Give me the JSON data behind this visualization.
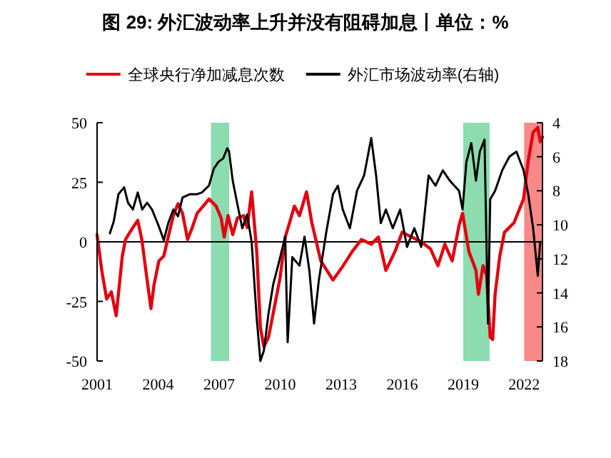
{
  "chart_data": {
    "type": "line",
    "title": "图 29: 外汇波动率上升并没有阻碍加息丨单位：%",
    "xlim": [
      2001,
      2022.9
    ],
    "xticks": [
      2001,
      2004,
      2007,
      2010,
      2013,
      2016,
      2019,
      2022
    ],
    "ylim": [
      -50,
      50
    ],
    "yticks": [
      -50,
      -25,
      0,
      25,
      50
    ],
    "y2lim": [
      18,
      4
    ],
    "y2ticks": [
      4,
      6,
      8,
      10,
      12,
      14,
      16,
      18
    ],
    "legend": "top",
    "grid": false,
    "ref_lines": [
      {
        "axis": "y",
        "value": 0,
        "color": "#000000"
      }
    ],
    "bands": [
      {
        "axis": "x",
        "from": 2006.6,
        "to": 2007.5,
        "color": "#6fd39c"
      },
      {
        "axis": "x",
        "from": 2019.0,
        "to": 2020.3,
        "color": "#6fd39c"
      },
      {
        "axis": "x",
        "from": 2022.0,
        "to": 2022.9,
        "color": "#f76b6b"
      }
    ],
    "series": [
      {
        "name": "全球央行净加减息次数",
        "color": "#e3000f",
        "x": [
          2001.0,
          2001.23,
          2001.47,
          2001.7,
          2001.94,
          2002.24,
          2002.4,
          2002.76,
          2003.0,
          2003.2,
          2003.46,
          2003.65,
          2003.8,
          2004.04,
          2004.28,
          2004.44,
          2004.75,
          2004.98,
          2005.2,
          2005.45,
          2005.68,
          2005.92,
          2006.22,
          2006.5,
          2006.85,
          2007.1,
          2007.25,
          2007.44,
          2007.67,
          2007.9,
          2008.2,
          2008.38,
          2008.6,
          2008.85,
          2009.03,
          2009.2,
          2009.43,
          2009.66,
          2010.0,
          2010.25,
          2010.5,
          2010.7,
          2010.95,
          2011.3,
          2011.56,
          2012.0,
          2012.6,
          2013.1,
          2013.55,
          2014.0,
          2014.48,
          2014.83,
          2015.2,
          2015.65,
          2016.0,
          2016.47,
          2016.94,
          2017.4,
          2017.76,
          2018.1,
          2018.46,
          2018.8,
          2018.97,
          2019.28,
          2019.63,
          2019.75,
          2019.98,
          2020.15,
          2020.33,
          2020.45,
          2020.57,
          2020.8,
          2021.03,
          2021.5,
          2021.97,
          2022.2,
          2022.44,
          2022.67,
          2022.79,
          2022.9
        ],
        "values": [
          3,
          -12,
          -24,
          -21,
          -31,
          -6,
          1,
          6,
          9,
          1,
          -16,
          -28,
          -18,
          -8,
          -6,
          0,
          11,
          16,
          12,
          1,
          6,
          12,
          15,
          18,
          15,
          10,
          2,
          11,
          3,
          10,
          11,
          6,
          21,
          -4,
          -36,
          -44,
          -40,
          -30,
          -15,
          2,
          9,
          15,
          11,
          21,
          8,
          -8,
          -16,
          -10,
          -4,
          1,
          -1,
          2,
          -12,
          -4,
          4,
          2,
          0,
          -3,
          -10,
          -1,
          -8,
          7,
          12,
          -4,
          -12,
          -22,
          -10,
          -14,
          -40,
          -41,
          -22,
          -6,
          4,
          8,
          18,
          34,
          46,
          48,
          42,
          44
        ]
      },
      {
        "name": "外汇市场波动率(右轴)",
        "color": "#000000",
        "axis": "y2",
        "x": [
          2001.63,
          2001.82,
          2002.05,
          2002.33,
          2002.52,
          2002.76,
          2003.0,
          2003.22,
          2003.46,
          2003.7,
          2004.04,
          2004.28,
          2004.5,
          2004.75,
          2004.98,
          2005.2,
          2005.57,
          2005.92,
          2006.15,
          2006.5,
          2006.74,
          2006.97,
          2007.2,
          2007.4,
          2007.49,
          2007.67,
          2007.9,
          2008.14,
          2008.38,
          2008.6,
          2008.85,
          2009.03,
          2009.2,
          2009.43,
          2009.66,
          2009.9,
          2010.25,
          2010.37,
          2010.6,
          2010.95,
          2011.2,
          2011.44,
          2011.67,
          2011.9,
          2012.26,
          2012.6,
          2012.84,
          2013.08,
          2013.43,
          2013.78,
          2014.13,
          2014.48,
          2014.72,
          2014.95,
          2015.2,
          2015.54,
          2015.9,
          2016.24,
          2016.6,
          2016.94,
          2017.3,
          2017.64,
          2018.0,
          2018.34,
          2018.8,
          2018.97,
          2019.16,
          2019.4,
          2019.63,
          2019.82,
          2020.05,
          2020.22,
          2020.33,
          2020.57,
          2020.92,
          2021.27,
          2021.62,
          2021.97,
          2022.2,
          2022.44,
          2022.67,
          2022.79
        ],
        "values": [
          10.5,
          9.8,
          8.2,
          7.8,
          8.7,
          9.1,
          8.1,
          9.1,
          8.7,
          9.1,
          10.1,
          10.9,
          9.9,
          9.1,
          9.5,
          8.4,
          8.2,
          8.2,
          8.1,
          7.7,
          6.7,
          6.3,
          6.1,
          5.5,
          5.7,
          7.4,
          8.8,
          10.2,
          9.4,
          11.0,
          15.5,
          18.0,
          17.4,
          15.2,
          13.5,
          12.4,
          10.7,
          16.9,
          11.9,
          12.4,
          10.7,
          12.7,
          15.8,
          13.3,
          10.5,
          8.2,
          7.7,
          9.1,
          10.2,
          8.0,
          7.1,
          4.9,
          7.1,
          9.9,
          9.1,
          10.2,
          9.1,
          11.3,
          10.2,
          11.3,
          7.1,
          7.7,
          6.8,
          7.4,
          8.0,
          9.1,
          6.3,
          5.2,
          7.4,
          5.7,
          5.0,
          15.8,
          8.5,
          8.0,
          6.8,
          6.0,
          5.7,
          6.8,
          8.2,
          10.2,
          13.0,
          11.0
        ]
      }
    ]
  }
}
